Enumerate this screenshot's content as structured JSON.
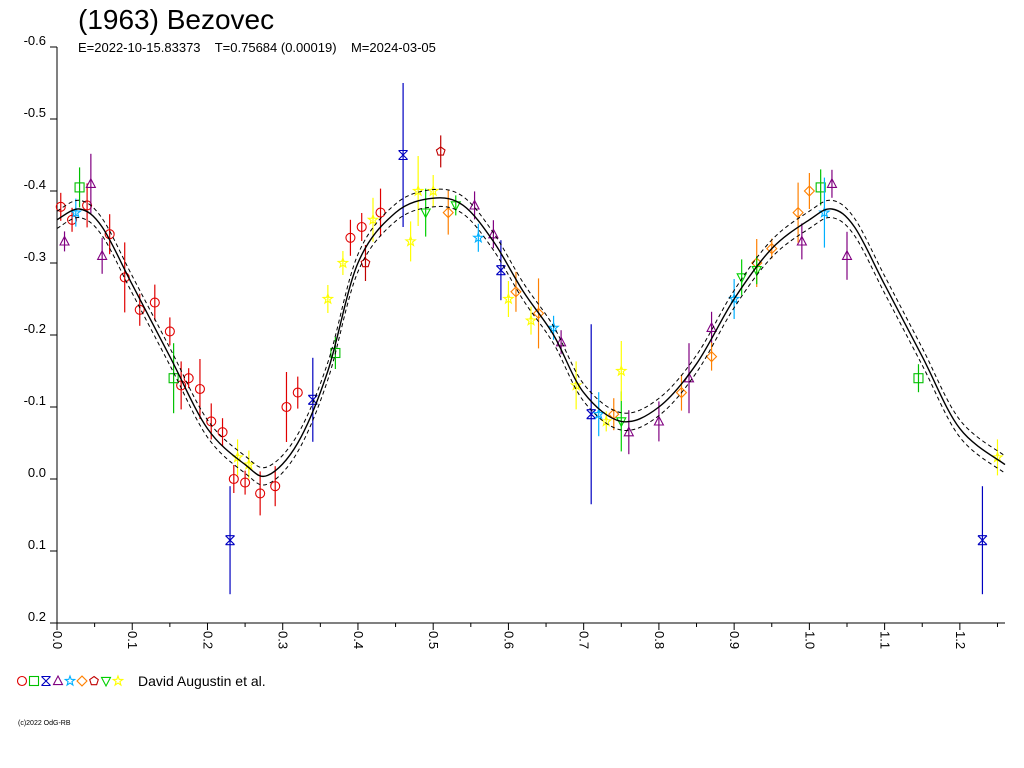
{
  "title": "(1963) Bezovec",
  "subtitle": "E=2022-10-15.83373    T=0.75684 (0.00019)    M=2024-03-05",
  "legend_label": "David Augustin et al.",
  "copyright": "(c)2022 OdG-RB",
  "chart_data": {
    "type": "scatter",
    "title": "(1963) Bezovec",
    "xlim": [
      0.0,
      1.26
    ],
    "ylim": [
      0.2,
      -0.6
    ],
    "y_inverted": true,
    "x_ticks": [
      "0.0",
      "0.1",
      "0.2",
      "0.3",
      "0.4",
      "0.5",
      "0.6",
      "0.7",
      "0.8",
      "0.9",
      "1.0",
      "1.1",
      "1.2"
    ],
    "y_ticks": [
      "-0.6",
      "-0.5",
      "-0.4",
      "-0.3",
      "-0.2",
      "-0.1",
      "0.0",
      "0.1",
      "0.2"
    ],
    "fit_curve": {
      "phase": [
        0.0,
        0.03,
        0.06,
        0.1,
        0.15,
        0.2,
        0.25,
        0.28,
        0.32,
        0.36,
        0.4,
        0.45,
        0.5,
        0.54,
        0.58,
        0.62,
        0.66,
        0.7,
        0.75,
        0.8,
        0.85,
        0.9,
        0.95,
        1.0,
        1.03,
        1.06,
        1.1,
        1.15,
        1.2,
        1.26
      ],
      "mag": [
        -0.36,
        -0.375,
        -0.35,
        -0.27,
        -0.17,
        -0.07,
        -0.02,
        -0.005,
        -0.05,
        -0.15,
        -0.3,
        -0.37,
        -0.39,
        -0.38,
        -0.33,
        -0.26,
        -0.2,
        -0.12,
        -0.08,
        -0.1,
        -0.16,
        -0.25,
        -0.32,
        -0.36,
        -0.375,
        -0.35,
        -0.27,
        -0.17,
        -0.07,
        -0.02
      ],
      "band": 0.012
    },
    "series": [
      {
        "color": "#e00000",
        "marker": "circle",
        "points": [
          [
            0.005,
            -0.378
          ],
          [
            0.02,
            -0.36
          ],
          [
            0.04,
            -0.38
          ],
          [
            0.07,
            -0.34
          ],
          [
            0.09,
            -0.28
          ],
          [
            0.11,
            -0.235
          ],
          [
            0.13,
            -0.245
          ],
          [
            0.15,
            -0.205
          ],
          [
            0.165,
            -0.13
          ],
          [
            0.175,
            -0.14
          ],
          [
            0.19,
            -0.125
          ],
          [
            0.205,
            -0.08
          ],
          [
            0.22,
            -0.065
          ],
          [
            0.235,
            0.0
          ],
          [
            0.25,
            0.005
          ],
          [
            0.27,
            0.02
          ],
          [
            0.29,
            0.01
          ],
          [
            0.305,
            -0.1
          ],
          [
            0.32,
            -0.12
          ],
          [
            0.39,
            -0.335
          ],
          [
            0.405,
            -0.35
          ],
          [
            0.43,
            -0.37
          ]
        ]
      },
      {
        "color": "#00c000",
        "marker": "square",
        "points": [
          [
            0.03,
            -0.405
          ],
          [
            0.155,
            -0.14
          ],
          [
            0.37,
            -0.175
          ],
          [
            1.015,
            -0.405
          ],
          [
            1.145,
            -0.14
          ]
        ]
      },
      {
        "color": "#0000c0",
        "marker": "cross",
        "points": [
          [
            0.23,
            0.085
          ],
          [
            0.34,
            -0.11
          ],
          [
            0.46,
            -0.45
          ],
          [
            0.59,
            -0.29
          ],
          [
            0.71,
            -0.09
          ],
          [
            1.23,
            0.085
          ]
        ]
      },
      {
        "color": "#800080",
        "marker": "triangle",
        "points": [
          [
            0.01,
            -0.33
          ],
          [
            0.045,
            -0.41
          ],
          [
            0.06,
            -0.31
          ],
          [
            0.555,
            -0.38
          ],
          [
            0.58,
            -0.34
          ],
          [
            0.67,
            -0.19
          ],
          [
            0.76,
            -0.065
          ],
          [
            0.8,
            -0.08
          ],
          [
            0.84,
            -0.14
          ],
          [
            0.87,
            -0.21
          ],
          [
            0.99,
            -0.33
          ],
          [
            1.03,
            -0.41
          ],
          [
            1.05,
            -0.31
          ]
        ]
      },
      {
        "color": "#00b0ff",
        "marker": "star",
        "points": [
          [
            0.025,
            -0.37
          ],
          [
            0.56,
            -0.335
          ],
          [
            0.66,
            -0.21
          ],
          [
            0.72,
            -0.09
          ],
          [
            0.9,
            -0.25
          ],
          [
            1.02,
            -0.37
          ]
        ]
      },
      {
        "color": "#ff8000",
        "marker": "diamond",
        "points": [
          [
            0.52,
            -0.37
          ],
          [
            0.61,
            -0.26
          ],
          [
            0.64,
            -0.23
          ],
          [
            0.74,
            -0.09
          ],
          [
            0.83,
            -0.12
          ],
          [
            0.87,
            -0.17
          ],
          [
            0.93,
            -0.3
          ],
          [
            0.95,
            -0.32
          ],
          [
            0.985,
            -0.37
          ],
          [
            1.0,
            -0.4
          ]
        ]
      },
      {
        "color": "#c00000",
        "marker": "pentagon",
        "points": [
          [
            0.51,
            -0.455
          ],
          [
            0.41,
            -0.3
          ]
        ]
      },
      {
        "color": "#00d000",
        "marker": "triangle-down",
        "points": [
          [
            0.49,
            -0.37
          ],
          [
            0.53,
            -0.38
          ],
          [
            0.75,
            -0.08
          ],
          [
            0.91,
            -0.28
          ],
          [
            0.93,
            -0.29
          ]
        ]
      },
      {
        "color": "#ffff00",
        "marker": "star",
        "points": [
          [
            0.24,
            -0.03
          ],
          [
            0.255,
            -0.02
          ],
          [
            0.36,
            -0.25
          ],
          [
            0.38,
            -0.3
          ],
          [
            0.42,
            -0.36
          ],
          [
            0.47,
            -0.33
          ],
          [
            0.48,
            -0.4
          ],
          [
            0.5,
            -0.4
          ],
          [
            0.6,
            -0.25
          ],
          [
            0.63,
            -0.22
          ],
          [
            0.69,
            -0.13
          ],
          [
            0.73,
            -0.08
          ],
          [
            0.75,
            -0.15
          ],
          [
            1.25,
            -0.03
          ]
        ]
      }
    ]
  }
}
